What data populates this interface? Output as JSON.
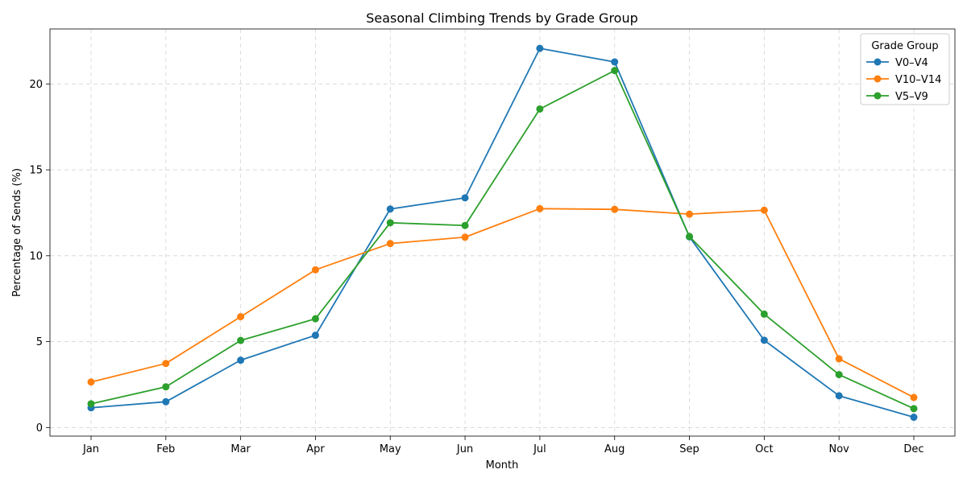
{
  "chart_data": {
    "type": "line",
    "title": "Seasonal Climbing Trends by Grade Group",
    "xlabel": "Month",
    "ylabel": "Percentage of Sends (%)",
    "categories": [
      "Jan",
      "Feb",
      "Mar",
      "Apr",
      "May",
      "Jun",
      "Jul",
      "Aug",
      "Sep",
      "Oct",
      "Nov",
      "Dec"
    ],
    "ylim": [
      -0.5,
      23.2
    ],
    "yticks": [
      0,
      5,
      10,
      15,
      20
    ],
    "grid": true,
    "legend": {
      "title": "Grade Group",
      "placement": "top-right"
    },
    "series": [
      {
        "name": "V0–V4",
        "color": "#1f77b4",
        "values": [
          1.15,
          1.5,
          3.92,
          5.37,
          12.72,
          13.37,
          22.07,
          21.28,
          11.1,
          5.08,
          1.85,
          0.6
        ]
      },
      {
        "name": "V10–V14",
        "color": "#ff7f0e",
        "values": [
          2.65,
          3.73,
          6.45,
          9.18,
          10.71,
          11.08,
          12.74,
          12.7,
          12.42,
          12.65,
          4.0,
          1.75
        ]
      },
      {
        "name": "V5–V9",
        "color": "#2ca02c",
        "values": [
          1.38,
          2.37,
          5.07,
          6.33,
          11.92,
          11.76,
          18.54,
          20.78,
          11.12,
          6.6,
          3.08,
          1.1
        ]
      }
    ]
  }
}
